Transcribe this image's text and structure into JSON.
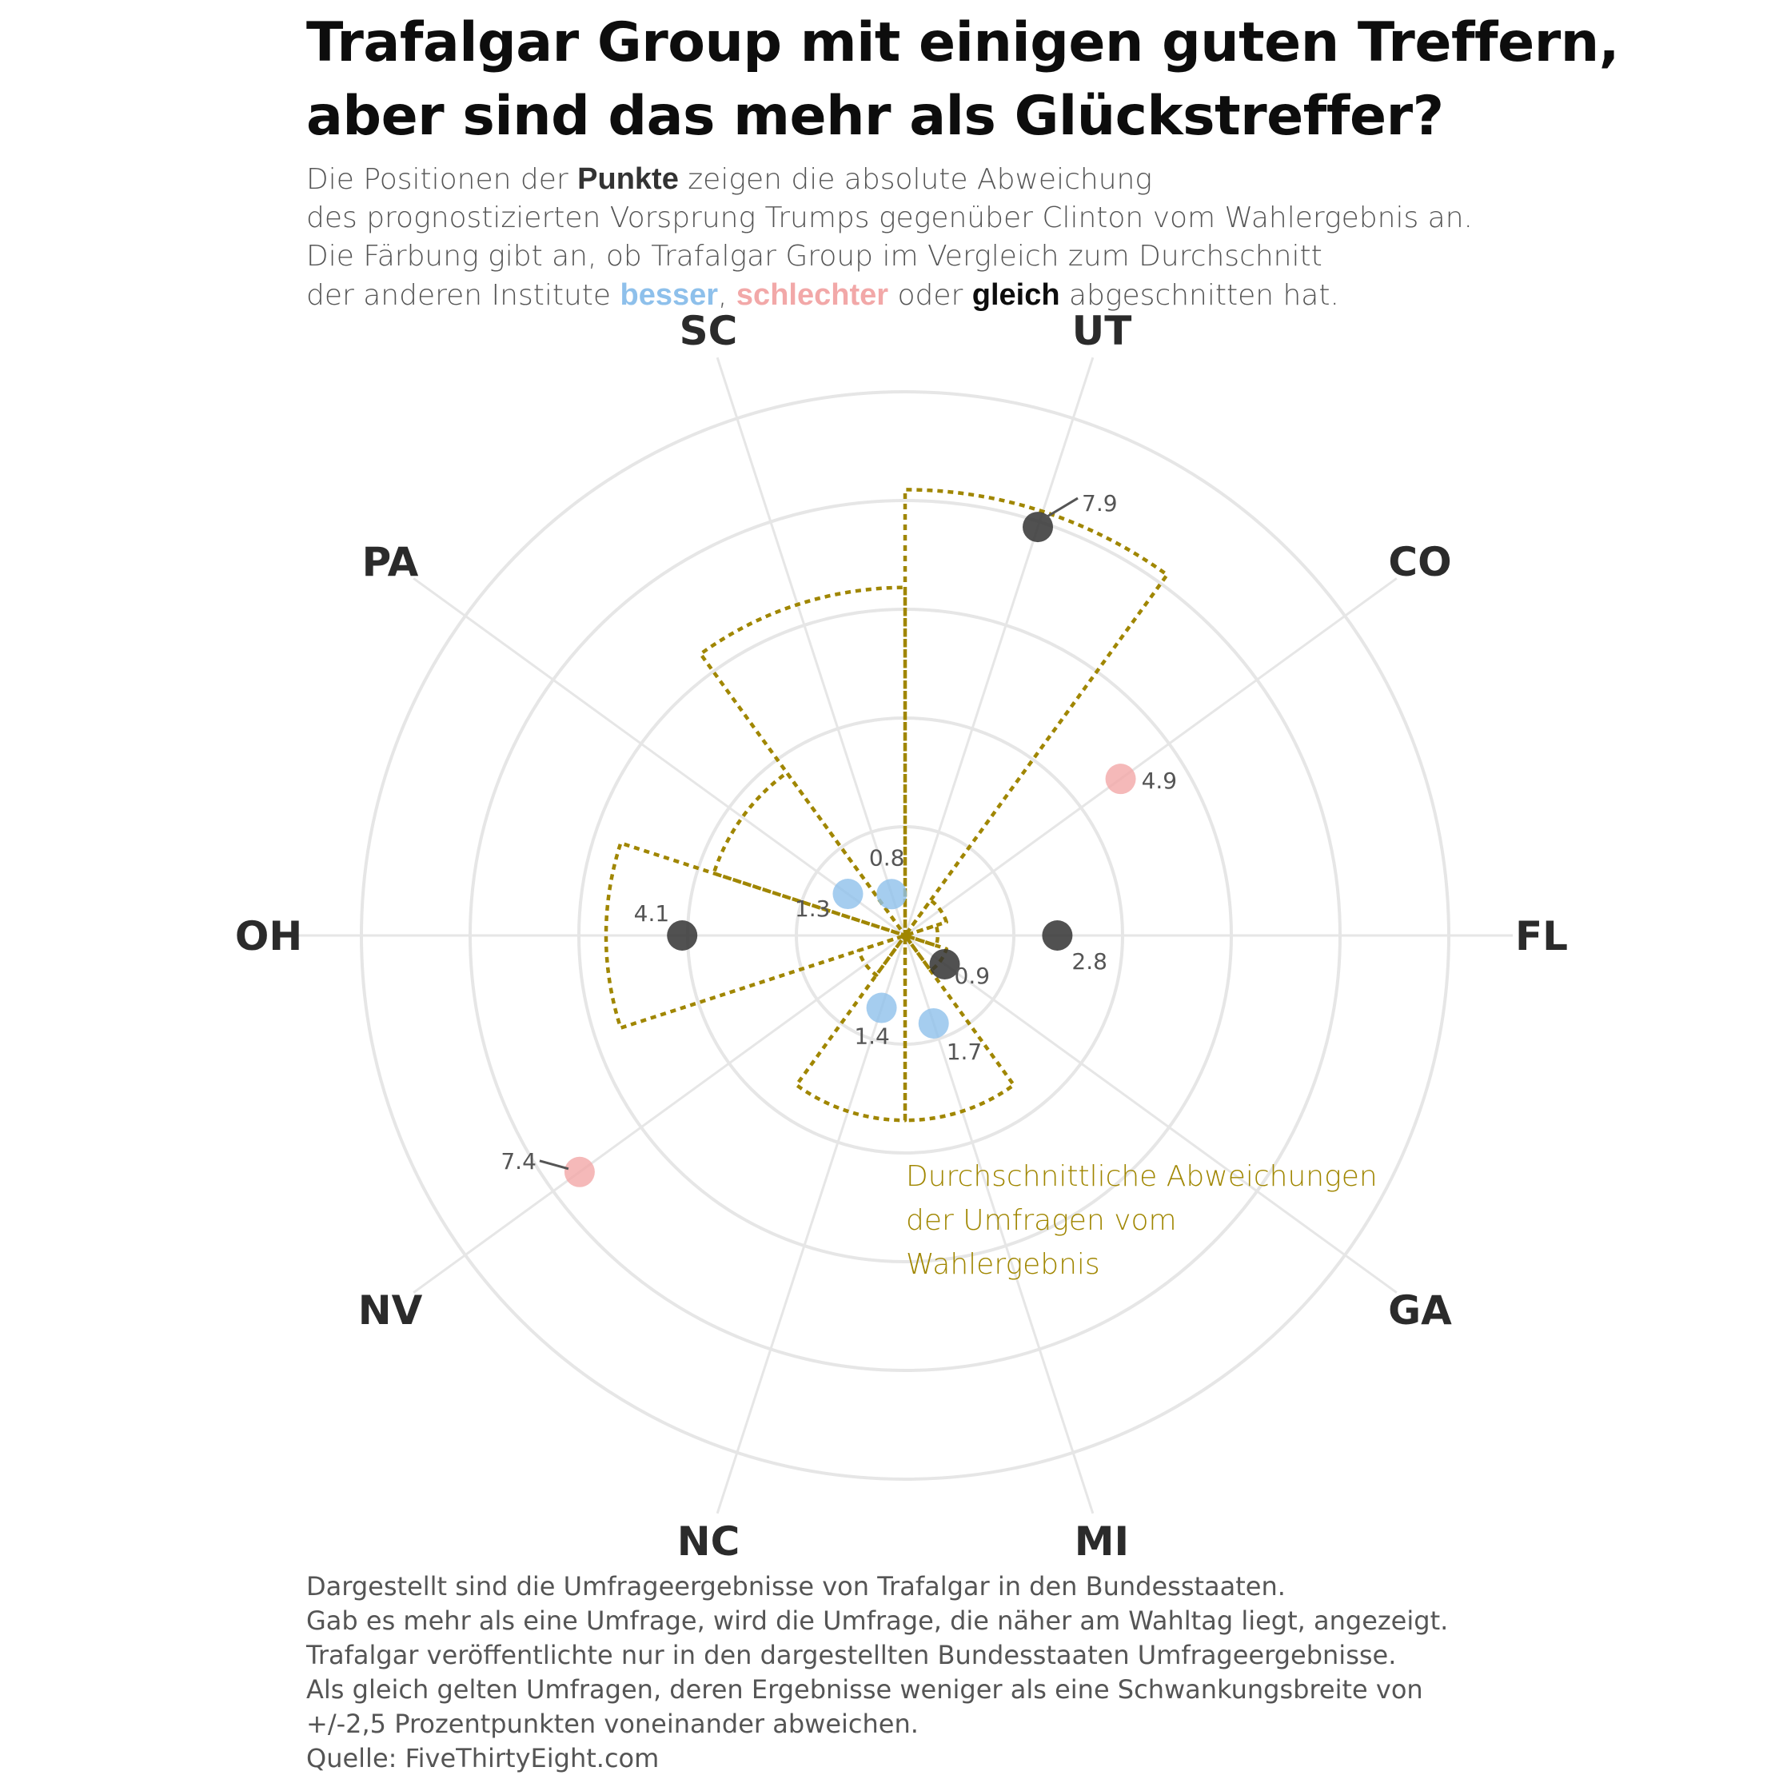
{
  "title": [
    "Trafalgar Group mit einigen guten Treffern,",
    "aber sind das mehr als Glückstreffer?"
  ],
  "subtitle": {
    "line1_a": "Die Positionen der ",
    "line1_b": "Punkte",
    "line1_c": " zeigen die absolute Abweichung",
    "line2": "des prognostizierten Vorsprung Trumps gegenüber Clinton vom Wahlergebnis an.",
    "line3": "Die Färbung gibt an, ob Trafalgar Group im Vergleich zum Durchschnitt",
    "line4_a": "der anderen Institute ",
    "line4_besser": "besser",
    "line4_sep": ", ",
    "line4_schlechter": "schlechter",
    "line4_oder": " oder ",
    "line4_gleich": "gleich",
    "line4_end": " abgeschnitten hat."
  },
  "colors": {
    "besser": "#8ec0eb",
    "schlechter": "#f2a8a8",
    "gleich": "#333333",
    "average_line": "#a08600",
    "grid": "#e6e6e6"
  },
  "chart_data": {
    "type": "polar-scatter",
    "rlim": [
      0,
      10
    ],
    "grid_rings": [
      2,
      4,
      6,
      8,
      10
    ],
    "categories": [
      "UT",
      "CO",
      "FL",
      "GA",
      "MI",
      "NC",
      "NV",
      "OH",
      "PA",
      "SC"
    ],
    "points": [
      {
        "state": "UT",
        "value": 7.9,
        "label": "7.9",
        "group": "gleich"
      },
      {
        "state": "CO",
        "value": 4.9,
        "label": "4.9",
        "group": "schlechter"
      },
      {
        "state": "FL",
        "value": 2.8,
        "label": "2.8",
        "group": "gleich"
      },
      {
        "state": "GA",
        "value": 0.9,
        "label": "0.9",
        "group": "gleich"
      },
      {
        "state": "MI",
        "value": 1.7,
        "label": "1.7",
        "group": "besser"
      },
      {
        "state": "NC",
        "value": 1.4,
        "label": "1.4",
        "group": "besser"
      },
      {
        "state": "NV",
        "value": 7.4,
        "label": "7.4",
        "group": "schlechter"
      },
      {
        "state": "OH",
        "value": 4.1,
        "label": "4.1",
        "group": "gleich"
      },
      {
        "state": "PA",
        "value": 1.3,
        "label": "1.3",
        "group": "besser"
      },
      {
        "state": "SC",
        "value": 0.8,
        "label": "0.8",
        "group": "besser"
      }
    ],
    "average_deviation": {
      "name": "Durchschnittliche Abweichungen der Umfragen vom Wahlergebnis",
      "values": {
        "UT": 8.2,
        "CO": 0.8,
        "FL": 0.6,
        "GA": 0.8,
        "MI": 3.4,
        "NC": 3.4,
        "NV": 0.9,
        "OH": 5.5,
        "PA": 3.7,
        "SC": 6.4
      }
    },
    "annotation": [
      "Durchschnittliche Abweichungen",
      "der Umfragen vom",
      "Wahlergebnis"
    ]
  },
  "footnote": [
    "Dargestellt sind die Umfrageergebnisse von Trafalgar in den Bundesstaaten.",
    "Gab es mehr als eine Umfrage, wird die Umfrage, die näher am Wahltag liegt, angezeigt.",
    "Trafalgar veröffentlichte nur in den dargestellten Bundesstaaten Umfrageergebnisse.",
    "Als gleich gelten Umfragen, deren Ergebnisse weniger als eine Schwankungsbreite von",
    "+/-2,5 Prozentpunkten voneinander abweichen.",
    "Quelle: FiveThirtyEight.com"
  ]
}
